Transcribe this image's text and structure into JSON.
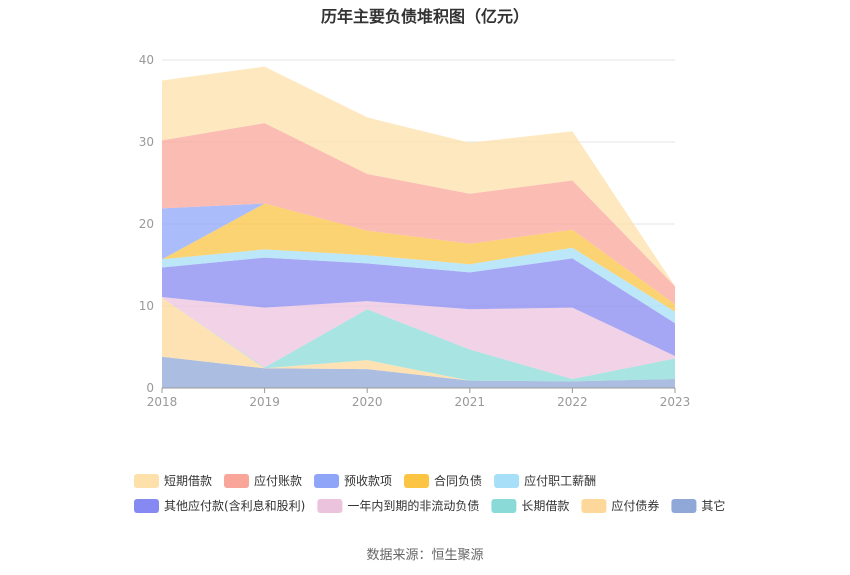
{
  "chart_data": {
    "type": "area",
    "stacked": true,
    "title": "历年主要负债堆积图（亿元）",
    "x": [
      "2018",
      "2019",
      "2020",
      "2021",
      "2022",
      "2023"
    ],
    "yticks": [
      "0",
      "10",
      "20",
      "30",
      "40"
    ],
    "ylim": [
      0,
      40
    ],
    "grid": true,
    "legend_position": "bottom",
    "series": [
      {
        "name": "其它",
        "color": "#8fa8d8",
        "values": [
          3.8,
          2.4,
          2.3,
          0.9,
          0.8,
          1.1
        ]
      },
      {
        "name": "应付债券",
        "color": "#fdd89a",
        "values": [
          7.2,
          0.0,
          1.1,
          0.0,
          0.0,
          0.0
        ]
      },
      {
        "name": "长期借款",
        "color": "#8adbd8",
        "values": [
          0.0,
          0.1,
          6.2,
          3.8,
          0.3,
          2.5
        ]
      },
      {
        "name": "一年内到期的非流动负债",
        "color": "#ecc3dd",
        "values": [
          0.1,
          7.3,
          1.0,
          4.9,
          8.7,
          0.3
        ]
      },
      {
        "name": "其他应付款(含利息和股利)",
        "color": "#8789f2",
        "values": [
          3.6,
          6.1,
          4.6,
          4.5,
          6.0,
          4.0
        ]
      },
      {
        "name": "应付职工薪酬",
        "color": "#a6dff7",
        "values": [
          1.0,
          1.0,
          1.0,
          1.0,
          1.3,
          1.4
        ]
      },
      {
        "name": "合同负债",
        "color": "#fbc443",
        "values": [
          0.0,
          5.6,
          3.0,
          2.5,
          2.2,
          0.9
        ]
      },
      {
        "name": "预收款项",
        "color": "#8fa5f8",
        "values": [
          6.2,
          0.0,
          0.0,
          0.0,
          0.0,
          0.0
        ]
      },
      {
        "name": "应付账款",
        "color": "#f9a59a",
        "values": [
          8.3,
          9.8,
          6.9,
          6.1,
          6.0,
          2.2
        ]
      },
      {
        "name": "短期借款",
        "color": "#fde0aa",
        "values": [
          7.3,
          6.9,
          6.9,
          6.2,
          6.0,
          0.0
        ]
      }
    ],
    "legend_order": [
      "短期借款",
      "应付账款",
      "预收款项",
      "合同负债",
      "应付职工薪酬",
      "其他应付款(含利息和股利)",
      "一年内到期的非流动负债",
      "长期借款",
      "应付债券",
      "其它"
    ],
    "source": "数据来源：恒生聚源"
  }
}
